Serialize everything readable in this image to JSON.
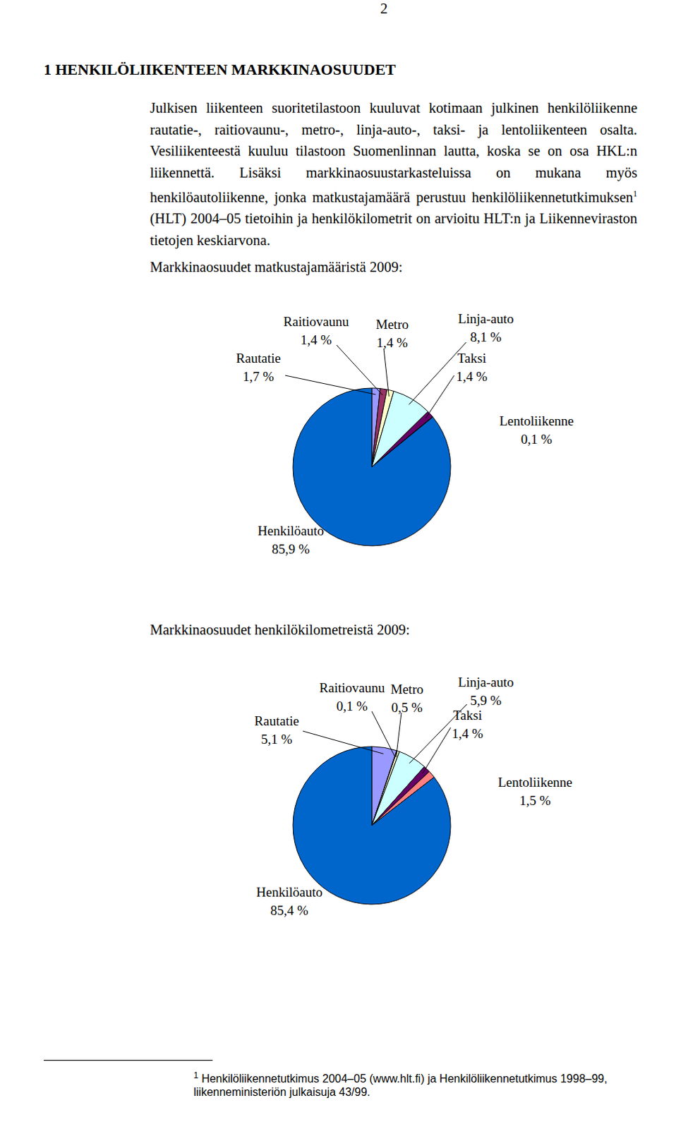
{
  "page_number": "2",
  "heading": "1 HENKILÖLIIKENTEEN MARKKINAOSUUDET",
  "paragraph": {
    "before_note": "Julkisen liikenteen suoritetilastoon kuuluvat kotimaan julkinen henkilöliikenne rautatie-, raitiovaunu-, metro-, linja-auto-, taksi- ja lentoliikenteen osalta. Vesiliikenteestä kuuluu tilastoon Suomenlinnan lautta, koska se on osa HKL:n liikennettä. Lisäksi markkinaosuustarkasteluissa on mukana myös henkilöautoliikenne, jonka matkustajamäärä perustuu henkilöliikennetutkimuksen",
    "note_mark": "1",
    "after_note": " (HLT) 2004–05 tietoihin ja henkilökilometrit on arvioitu HLT:n ja Liikenneviraston tietojen keskiarvona."
  },
  "chart_data": [
    {
      "type": "pie",
      "title": "Markkinaosuudet matkustajamääristä 2009:",
      "categories": [
        "Rautatie",
        "Raitiovaunu",
        "Metro",
        "Linja-auto",
        "Taksi",
        "Lentoliikenne",
        "Henkilöauto"
      ],
      "values": [
        1.7,
        1.4,
        1.4,
        8.1,
        1.4,
        0.1,
        85.9
      ],
      "value_labels": [
        "1,7 %",
        "1,4 %",
        "1,4 %",
        "8,1 %",
        "1,4 %",
        "0,1 %",
        "85,9 %"
      ],
      "colors": [
        "#9999ff",
        "#993366",
        "#ffffcc",
        "#ccffff",
        "#660066",
        "#ff8080",
        "#0066cc"
      ],
      "data_labels": true
    },
    {
      "type": "pie",
      "title": "Markkinaosuudet henkilökilometreistä 2009:",
      "categories": [
        "Rautatie",
        "Raitiovaunu",
        "Metro",
        "Linja-auto",
        "Taksi",
        "Lentoliikenne",
        "Henkilöauto"
      ],
      "values": [
        5.1,
        0.1,
        0.5,
        5.9,
        1.4,
        1.5,
        85.4
      ],
      "value_labels": [
        "5,1 %",
        "0,1 %",
        "0,5 %",
        "5,9 %",
        "1,4 %",
        "1,5 %",
        "85,4 %"
      ],
      "colors": [
        "#9999ff",
        "#993366",
        "#ffffcc",
        "#ccffff",
        "#660066",
        "#ff8080",
        "#0066cc"
      ],
      "data_labels": true
    }
  ],
  "footnote": {
    "mark": "1",
    "text": "Henkilöliikennetutkimus 2004–05 (www.hlt.fi) ja Henkilöliikennetutkimus 1998–99, liikenneministeriön julkaisuja 43/99."
  }
}
